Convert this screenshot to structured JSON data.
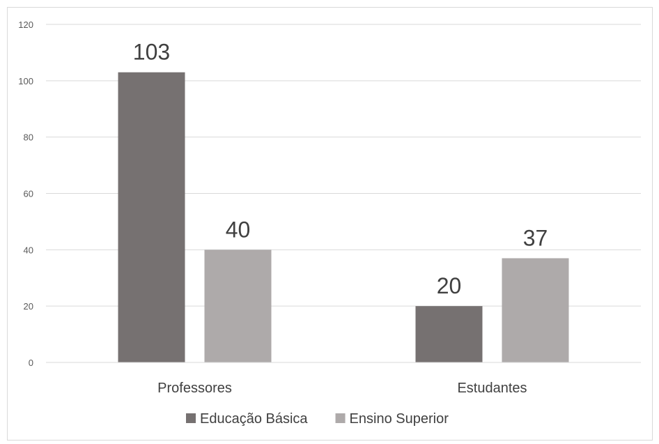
{
  "chart_data": {
    "type": "bar",
    "categories": [
      "Professores",
      "Estudantes"
    ],
    "series": [
      {
        "name": "Educação Básica",
        "values": [
          103,
          20
        ],
        "color": "#767171"
      },
      {
        "name": "Ensino Superior",
        "values": [
          40,
          37
        ],
        "color": "#aeaaaa"
      }
    ],
    "ylim": [
      0,
      120
    ],
    "yticks": [
      0,
      20,
      40,
      60,
      80,
      100,
      120
    ],
    "grid": true,
    "legend": "bottom",
    "title": "",
    "xlabel": "",
    "ylabel": ""
  }
}
